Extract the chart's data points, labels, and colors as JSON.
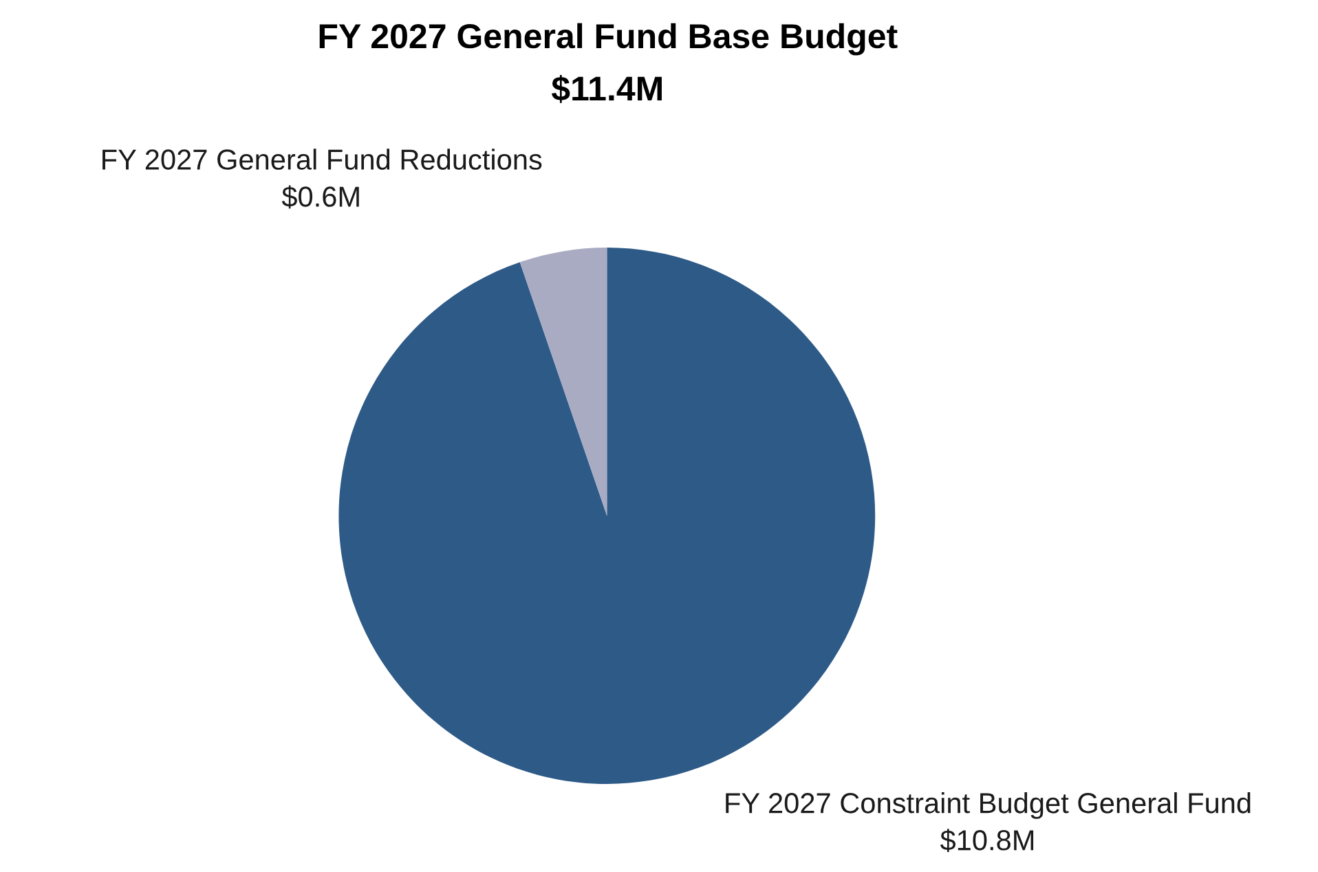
{
  "chart_data": {
    "type": "pie",
    "title": "FY 2027 General Fund Base Budget",
    "subtitle": "$11.4M",
    "categories": [
      "FY 2027 Constraint Budget General Fund",
      "FY 2027 General Fund Reductions"
    ],
    "values": [
      10.8,
      0.6
    ],
    "value_labels": [
      "$10.8M",
      "$0.6M"
    ],
    "colors": [
      "#2e5a87",
      "#a9abc2"
    ]
  }
}
